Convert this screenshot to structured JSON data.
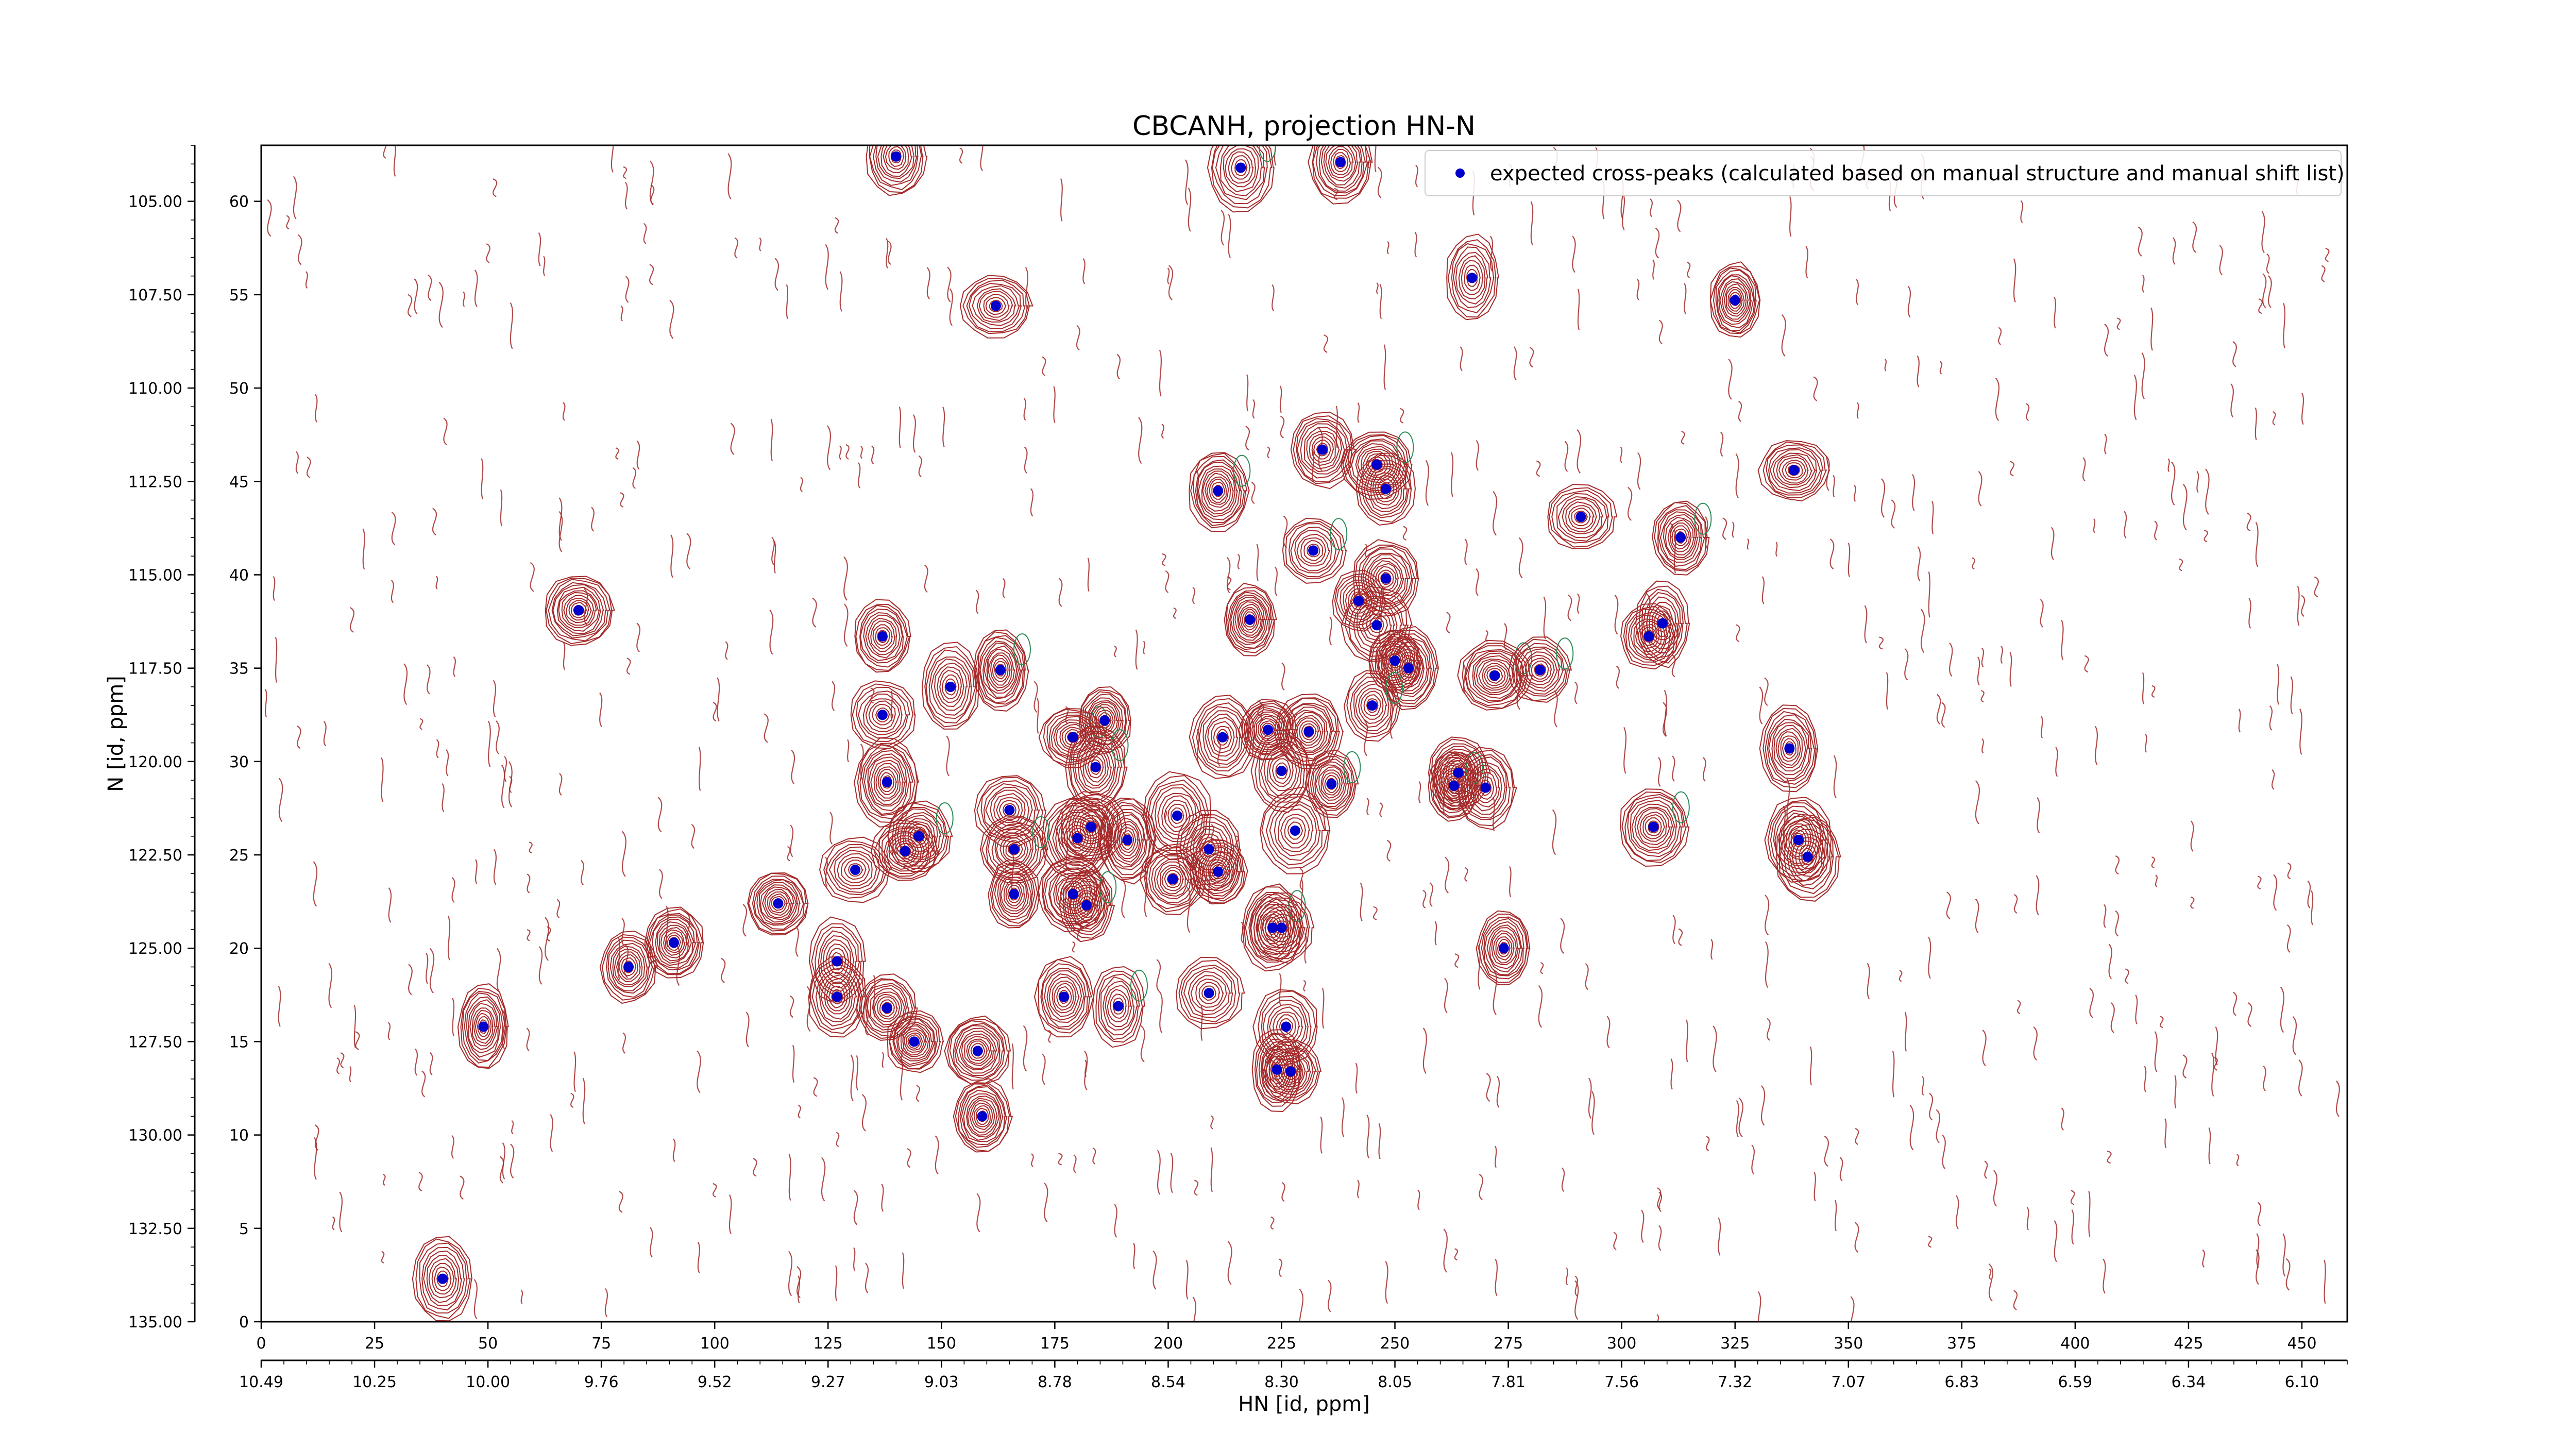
{
  "colors": {
    "positive_contour": "#a52a2a",
    "negative_contour": "#2e8b57",
    "peak_marker": "#0000cc",
    "text": "#000000"
  },
  "chart_data": {
    "type": "scatter",
    "title": "CBCANH, projection HN-N",
    "xlabel": "HN [id, ppm]",
    "ylabel": "N [id, ppm]",
    "xlim": [
      0,
      460
    ],
    "ylim": [
      0,
      63
    ],
    "bottom_axis_ticks": [
      "0",
      "25",
      "50",
      "75",
      "100",
      "125",
      "150",
      "175",
      "200",
      "225",
      "250",
      "275",
      "300",
      "325",
      "350",
      "375",
      "400",
      "425",
      "450"
    ],
    "bottom_ppm_ticks": [
      "10.49",
      "10.25",
      "10.00",
      "9.76",
      "9.52",
      "9.27",
      "9.03",
      "8.78",
      "8.54",
      "8.30",
      "8.05",
      "7.81",
      "7.56",
      "7.32",
      "7.07",
      "6.83",
      "6.59",
      "6.34",
      "6.10"
    ],
    "left_axis_ticks": [
      "0",
      "5",
      "10",
      "15",
      "20",
      "25",
      "30",
      "35",
      "40",
      "45",
      "50",
      "55",
      "60"
    ],
    "left_ppm_ticks": [
      "135.00",
      "132.50",
      "130.00",
      "127.50",
      "125.00",
      "122.50",
      "120.00",
      "117.50",
      "115.00",
      "112.50",
      "110.00",
      "107.50",
      "105.00"
    ],
    "legend": {
      "position": "top-right",
      "entries": [
        "expected cross-peaks (calculated based on manual structure and manual shift list)"
      ]
    },
    "series": [
      {
        "name": "expected cross-peaks (calculated based on manual structure and manual shift list)",
        "points": [
          [
            140,
            62.4
          ],
          [
            216,
            61.8
          ],
          [
            238,
            62.1
          ],
          [
            162,
            54.4
          ],
          [
            267,
            55.9
          ],
          [
            325,
            54.7
          ],
          [
            211,
            44.5
          ],
          [
            234,
            46.7
          ],
          [
            246,
            45.9
          ],
          [
            248,
            44.6
          ],
          [
            338,
            45.6
          ],
          [
            291,
            43.1
          ],
          [
            313,
            42.0
          ],
          [
            232,
            41.3
          ],
          [
            248,
            39.8
          ],
          [
            242,
            38.6
          ],
          [
            218,
            37.6
          ],
          [
            246,
            37.3
          ],
          [
            306,
            36.7
          ],
          [
            309,
            37.4
          ],
          [
            70,
            38.1
          ],
          [
            137,
            36.7
          ],
          [
            152,
            34.0
          ],
          [
            163,
            34.9
          ],
          [
            250,
            35.4
          ],
          [
            253,
            35.0
          ],
          [
            272,
            34.6
          ],
          [
            282,
            34.9
          ],
          [
            245,
            33.0
          ],
          [
            137,
            32.5
          ],
          [
            179,
            31.3
          ],
          [
            186,
            32.2
          ],
          [
            212,
            31.3
          ],
          [
            222,
            31.7
          ],
          [
            231,
            31.6
          ],
          [
            337,
            30.7
          ],
          [
            184,
            29.7
          ],
          [
            225,
            29.5
          ],
          [
            264,
            29.4
          ],
          [
            263,
            28.7
          ],
          [
            270,
            28.6
          ],
          [
            138,
            28.9
          ],
          [
            236,
            28.8
          ],
          [
            165,
            27.4
          ],
          [
            202,
            27.1
          ],
          [
            307,
            26.5
          ],
          [
            228,
            26.3
          ],
          [
            145,
            26.0
          ],
          [
            183,
            26.5
          ],
          [
            180,
            25.9
          ],
          [
            166,
            25.3
          ],
          [
            191,
            25.8
          ],
          [
            209,
            25.3
          ],
          [
            142,
            25.2
          ],
          [
            339,
            25.8
          ],
          [
            341,
            24.9
          ],
          [
            131,
            24.2
          ],
          [
            201,
            23.7
          ],
          [
            211,
            24.1
          ],
          [
            166,
            22.9
          ],
          [
            179,
            22.9
          ],
          [
            182,
            22.3
          ],
          [
            114,
            22.4
          ],
          [
            223,
            21.1
          ],
          [
            225,
            21.1
          ],
          [
            127,
            19.3
          ],
          [
            91,
            20.3
          ],
          [
            81,
            19.0
          ],
          [
            274,
            20.0
          ],
          [
            127,
            17.4
          ],
          [
            177,
            17.4
          ],
          [
            189,
            16.9
          ],
          [
            209,
            17.6
          ],
          [
            138,
            16.8
          ],
          [
            144,
            15.0
          ],
          [
            49,
            15.8
          ],
          [
            158,
            14.5
          ],
          [
            226,
            15.8
          ],
          [
            224,
            13.5
          ],
          [
            227,
            13.4
          ],
          [
            159,
            11.0
          ],
          [
            40,
            2.3
          ]
        ]
      }
    ]
  }
}
